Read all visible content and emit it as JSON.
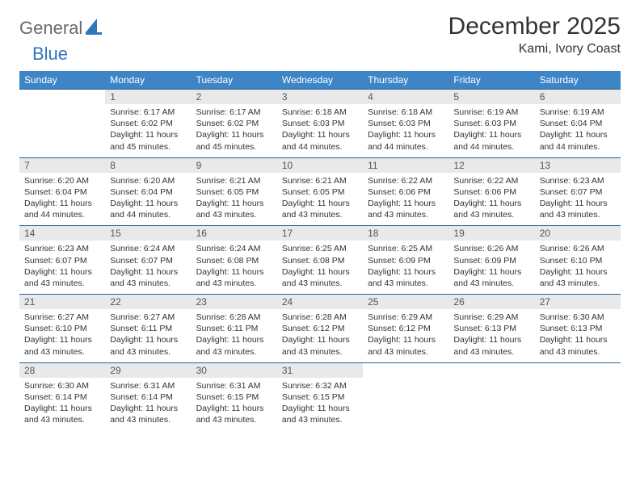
{
  "brand": {
    "part1": "General",
    "part2": "Blue"
  },
  "title": "December 2025",
  "location": "Kami, Ivory Coast",
  "colors": {
    "header_bg": "#3d85c6",
    "header_text": "#ffffff",
    "daynum_bg": "#e9e9e9",
    "row_border": "#2f5f8f",
    "logo_gray": "#6a6a6a",
    "logo_blue": "#2f77bb",
    "body_bg": "#ffffff",
    "text": "#333333"
  },
  "weekdays": [
    "Sunday",
    "Monday",
    "Tuesday",
    "Wednesday",
    "Thursday",
    "Friday",
    "Saturday"
  ],
  "first_weekday_index": 1,
  "days": [
    {
      "n": 1,
      "sunrise": "6:17 AM",
      "sunset": "6:02 PM",
      "daylight": "11 hours and 45 minutes."
    },
    {
      "n": 2,
      "sunrise": "6:17 AM",
      "sunset": "6:02 PM",
      "daylight": "11 hours and 45 minutes."
    },
    {
      "n": 3,
      "sunrise": "6:18 AM",
      "sunset": "6:03 PM",
      "daylight": "11 hours and 44 minutes."
    },
    {
      "n": 4,
      "sunrise": "6:18 AM",
      "sunset": "6:03 PM",
      "daylight": "11 hours and 44 minutes."
    },
    {
      "n": 5,
      "sunrise": "6:19 AM",
      "sunset": "6:03 PM",
      "daylight": "11 hours and 44 minutes."
    },
    {
      "n": 6,
      "sunrise": "6:19 AM",
      "sunset": "6:04 PM",
      "daylight": "11 hours and 44 minutes."
    },
    {
      "n": 7,
      "sunrise": "6:20 AM",
      "sunset": "6:04 PM",
      "daylight": "11 hours and 44 minutes."
    },
    {
      "n": 8,
      "sunrise": "6:20 AM",
      "sunset": "6:04 PM",
      "daylight": "11 hours and 44 minutes."
    },
    {
      "n": 9,
      "sunrise": "6:21 AM",
      "sunset": "6:05 PM",
      "daylight": "11 hours and 43 minutes."
    },
    {
      "n": 10,
      "sunrise": "6:21 AM",
      "sunset": "6:05 PM",
      "daylight": "11 hours and 43 minutes."
    },
    {
      "n": 11,
      "sunrise": "6:22 AM",
      "sunset": "6:06 PM",
      "daylight": "11 hours and 43 minutes."
    },
    {
      "n": 12,
      "sunrise": "6:22 AM",
      "sunset": "6:06 PM",
      "daylight": "11 hours and 43 minutes."
    },
    {
      "n": 13,
      "sunrise": "6:23 AM",
      "sunset": "6:07 PM",
      "daylight": "11 hours and 43 minutes."
    },
    {
      "n": 14,
      "sunrise": "6:23 AM",
      "sunset": "6:07 PM",
      "daylight": "11 hours and 43 minutes."
    },
    {
      "n": 15,
      "sunrise": "6:24 AM",
      "sunset": "6:07 PM",
      "daylight": "11 hours and 43 minutes."
    },
    {
      "n": 16,
      "sunrise": "6:24 AM",
      "sunset": "6:08 PM",
      "daylight": "11 hours and 43 minutes."
    },
    {
      "n": 17,
      "sunrise": "6:25 AM",
      "sunset": "6:08 PM",
      "daylight": "11 hours and 43 minutes."
    },
    {
      "n": 18,
      "sunrise": "6:25 AM",
      "sunset": "6:09 PM",
      "daylight": "11 hours and 43 minutes."
    },
    {
      "n": 19,
      "sunrise": "6:26 AM",
      "sunset": "6:09 PM",
      "daylight": "11 hours and 43 minutes."
    },
    {
      "n": 20,
      "sunrise": "6:26 AM",
      "sunset": "6:10 PM",
      "daylight": "11 hours and 43 minutes."
    },
    {
      "n": 21,
      "sunrise": "6:27 AM",
      "sunset": "6:10 PM",
      "daylight": "11 hours and 43 minutes."
    },
    {
      "n": 22,
      "sunrise": "6:27 AM",
      "sunset": "6:11 PM",
      "daylight": "11 hours and 43 minutes."
    },
    {
      "n": 23,
      "sunrise": "6:28 AM",
      "sunset": "6:11 PM",
      "daylight": "11 hours and 43 minutes."
    },
    {
      "n": 24,
      "sunrise": "6:28 AM",
      "sunset": "6:12 PM",
      "daylight": "11 hours and 43 minutes."
    },
    {
      "n": 25,
      "sunrise": "6:29 AM",
      "sunset": "6:12 PM",
      "daylight": "11 hours and 43 minutes."
    },
    {
      "n": 26,
      "sunrise": "6:29 AM",
      "sunset": "6:13 PM",
      "daylight": "11 hours and 43 minutes."
    },
    {
      "n": 27,
      "sunrise": "6:30 AM",
      "sunset": "6:13 PM",
      "daylight": "11 hours and 43 minutes."
    },
    {
      "n": 28,
      "sunrise": "6:30 AM",
      "sunset": "6:14 PM",
      "daylight": "11 hours and 43 minutes."
    },
    {
      "n": 29,
      "sunrise": "6:31 AM",
      "sunset": "6:14 PM",
      "daylight": "11 hours and 43 minutes."
    },
    {
      "n": 30,
      "sunrise": "6:31 AM",
      "sunset": "6:15 PM",
      "daylight": "11 hours and 43 minutes."
    },
    {
      "n": 31,
      "sunrise": "6:32 AM",
      "sunset": "6:15 PM",
      "daylight": "11 hours and 43 minutes."
    }
  ],
  "labels": {
    "sunrise": "Sunrise:",
    "sunset": "Sunset:",
    "daylight": "Daylight:"
  }
}
